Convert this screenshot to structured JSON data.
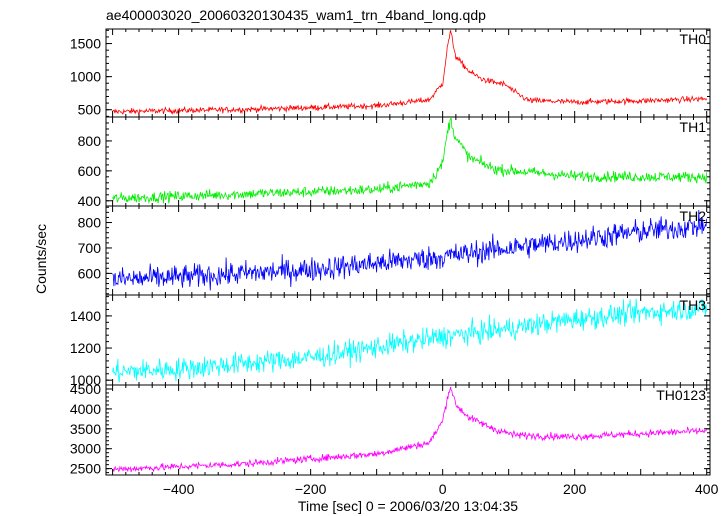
{
  "chart_data": {
    "type": "line",
    "title": "ae400003020_20060320130435_wam1_trn_4band_long.qdp",
    "xlabel": "Time [sec] 0 = 2006/03/20 13:04:35",
    "ylabel": "Counts/sec",
    "xlim": [
      -510,
      405
    ],
    "xticks": [
      -400,
      -200,
      0,
      200,
      400
    ],
    "xtick_labels": [
      "−400",
      "−200",
      "0",
      "200",
      "400"
    ],
    "x_step": 1,
    "panels": [
      {
        "name": "TH0",
        "color": "#ff0000",
        "ylim": [
          390,
          1720
        ],
        "yticks": [
          500,
          1000,
          1500
        ],
        "ytick_labels": [
          "500",
          "1000",
          "1500"
        ],
        "noise": 22,
        "trend": [
          [
            -500,
            470
          ],
          [
            -300,
            505
          ],
          [
            -100,
            560
          ],
          [
            -20,
            650
          ],
          [
            0,
            900
          ],
          [
            8,
            1500
          ],
          [
            12,
            1680
          ],
          [
            20,
            1300
          ],
          [
            40,
            1080
          ],
          [
            60,
            960
          ],
          [
            80,
            910
          ],
          [
            95,
            880
          ],
          [
            110,
            760
          ],
          [
            130,
            640
          ],
          [
            200,
            615
          ],
          [
            300,
            635
          ],
          [
            400,
            665
          ]
        ]
      },
      {
        "name": "TH1",
        "color": "#00ee00",
        "ylim": [
          365,
          960
        ],
        "yticks": [
          400,
          600,
          800
        ],
        "ytick_labels": [
          "400",
          "600",
          "800"
        ],
        "noise": 18,
        "trend": [
          [
            -500,
            415
          ],
          [
            -300,
            445
          ],
          [
            -100,
            475
          ],
          [
            -20,
            520
          ],
          [
            0,
            650
          ],
          [
            8,
            880
          ],
          [
            12,
            940
          ],
          [
            20,
            820
          ],
          [
            40,
            690
          ],
          [
            80,
            610
          ],
          [
            200,
            565
          ],
          [
            300,
            560
          ],
          [
            400,
            560
          ]
        ]
      },
      {
        "name": "TH2",
        "color": "#0000ff",
        "ylim": [
          515,
          865
        ],
        "yticks": [
          600,
          700,
          800
        ],
        "ytick_labels": [
          "600",
          "700",
          "800"
        ],
        "noise": 24,
        "trend": [
          [
            -500,
            575
          ],
          [
            -400,
            585
          ],
          [
            -200,
            615
          ],
          [
            0,
            665
          ],
          [
            100,
            700
          ],
          [
            200,
            730
          ],
          [
            300,
            765
          ],
          [
            400,
            790
          ]
        ]
      },
      {
        "name": "TH3",
        "color": "#00ffff",
        "ylim": [
          970,
          1530
        ],
        "yticks": [
          1000,
          1200,
          1400
        ],
        "ytick_labels": [
          "1000",
          "1200",
          "1400"
        ],
        "noise": 35,
        "trend": [
          [
            -500,
            1050
          ],
          [
            -400,
            1070
          ],
          [
            -200,
            1140
          ],
          [
            0,
            1270
          ],
          [
            100,
            1320
          ],
          [
            200,
            1380
          ],
          [
            300,
            1420
          ],
          [
            400,
            1450
          ]
        ]
      },
      {
        "name": "TH0123",
        "color": "#ff00ff",
        "ylim": [
          2340,
          4600
        ],
        "yticks": [
          2500,
          3000,
          3500,
          4000,
          4500
        ],
        "ytick_labels": [
          "2500",
          "3000",
          "3500",
          "4000",
          "4500"
        ],
        "noise": 45,
        "trend": [
          [
            -500,
            2480
          ],
          [
            -300,
            2620
          ],
          [
            -100,
            2870
          ],
          [
            -20,
            3150
          ],
          [
            0,
            3700
          ],
          [
            8,
            4350
          ],
          [
            12,
            4560
          ],
          [
            20,
            4100
          ],
          [
            40,
            3780
          ],
          [
            80,
            3480
          ],
          [
            110,
            3340
          ],
          [
            200,
            3300
          ],
          [
            300,
            3380
          ],
          [
            400,
            3450
          ]
        ]
      }
    ]
  }
}
